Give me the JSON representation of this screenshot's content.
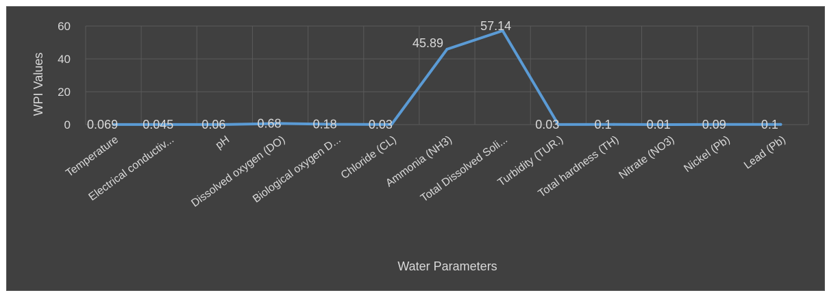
{
  "chart_data": {
    "type": "line",
    "title": "",
    "xlabel": "Water Parameters",
    "ylabel": "WPI Values",
    "ylim": [
      0,
      60
    ],
    "yticks": [
      0,
      20,
      40,
      60
    ],
    "grid": true,
    "legend": "none",
    "categories": [
      "Temperature",
      "Electrical conductiv...",
      "pH",
      "Dissolved oxygen (DO)",
      "Biological oxygen D...",
      "Chloride (CL)",
      "Ammonia (NH3)",
      "Total Dissolved Soli...",
      "Turbidity (TUR.)",
      "Total hardness (TH)",
      "Nitrate (NO3)",
      "Nickel (Pb)",
      "Lead (Pb)"
    ],
    "values": [
      0.069,
      0.045,
      0.06,
      0.68,
      0.18,
      0.03,
      45.89,
      57.14,
      0.03,
      0.1,
      0.01,
      0.09,
      0.1
    ],
    "data_labels": [
      "0.069",
      "0.045",
      "0.06",
      "0.68",
      "0.18",
      "0.03",
      "45.89",
      "57.14",
      "0.03",
      "0.1",
      "0.01",
      "0.09",
      "0.1"
    ],
    "colors": {
      "background": "#404040",
      "line": "#5b9bd5",
      "grid": "#5a5a5a",
      "text": "#d9d9d9"
    }
  }
}
